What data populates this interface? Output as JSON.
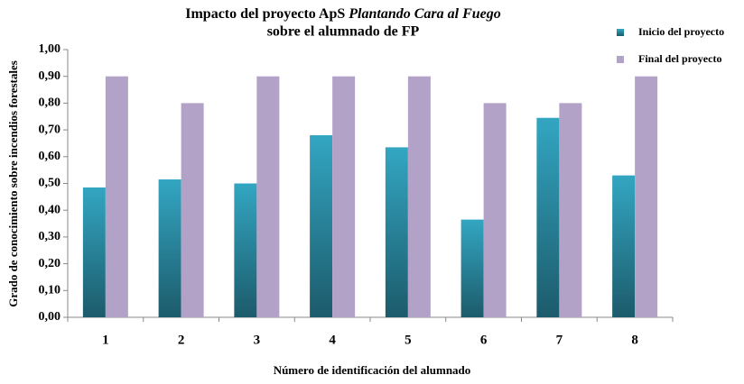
{
  "chart_data": {
    "type": "bar",
    "title": [
      "Impacto del proyecto ApS",
      "Plantando Cara al Fuego",
      "sobre el alumnado de FP"
    ],
    "x_label": "Número de identificación del alumnado",
    "y_label": "Grado de conocimiento sobre incendios forestales",
    "categories": [
      "1",
      "2",
      "3",
      "4",
      "5",
      "6",
      "7",
      "8"
    ],
    "series": [
      {
        "name": "Inicio del proyecto",
        "color": "#33a6c2",
        "gradient": true,
        "values": [
          0.485,
          0.515,
          0.5,
          0.68,
          0.635,
          0.365,
          0.745,
          0.53
        ]
      },
      {
        "name": "Final del proyecto",
        "color": "#b3a2c7",
        "gradient": false,
        "values": [
          0.9,
          0.8,
          0.9,
          0.9,
          0.9,
          0.8,
          0.8,
          0.9
        ]
      }
    ],
    "ylim": [
      0,
      1
    ],
    "yticks": [
      {
        "value": 0,
        "label": "0,00"
      },
      {
        "value": 0.1,
        "label": "0,10"
      },
      {
        "value": 0.2,
        "label": "0,20"
      },
      {
        "value": 0.3,
        "label": "0,30"
      },
      {
        "value": 0.4,
        "label": "0,40"
      },
      {
        "value": 0.5,
        "label": "0,50"
      },
      {
        "value": 0.6,
        "label": "0,60"
      },
      {
        "value": 0.7,
        "label": "0,70"
      },
      {
        "value": 0.8,
        "label": "0,80"
      },
      {
        "value": 0.9,
        "label": "0,90"
      },
      {
        "value": 1,
        "label": "1,00"
      }
    ],
    "grid": false,
    "legend": "top-right"
  }
}
